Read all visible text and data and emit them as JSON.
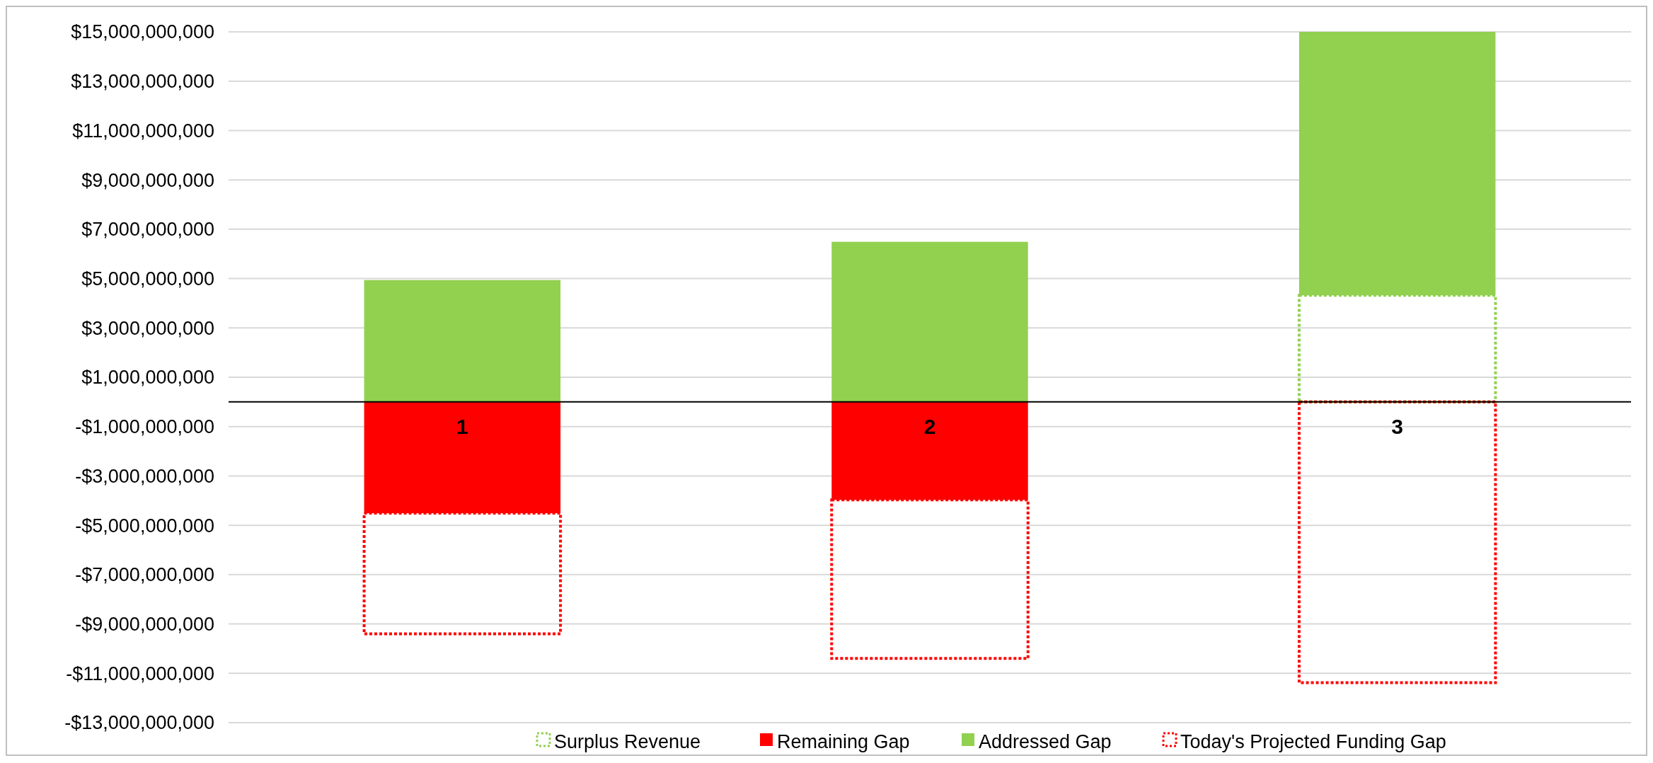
{
  "chart_data": {
    "type": "bar",
    "stacked": true,
    "categories": [
      "1",
      "2",
      "3"
    ],
    "series": [
      {
        "name": "Surplus Revenue",
        "color": "#92d050",
        "line_style": "dotted",
        "values": [
          0,
          0,
          4320000000
        ]
      },
      {
        "name": "Remaining Gap",
        "color": "#ff0000",
        "line_style": "solid",
        "values": [
          -4510000000,
          -3970000000,
          0
        ]
      },
      {
        "name": "Addressed Gap",
        "color": "#92d050",
        "line_style": "solid",
        "values": [
          4940000000,
          6490000000,
          10680000000
        ]
      },
      {
        "name": "Today's Projected Funding Gap",
        "color": "#ff0000",
        "line_style": "dotted",
        "values": [
          -4890000000,
          -6430000000,
          -11380000000
        ]
      }
    ],
    "ylim": [
      -13000000000,
      15000000000
    ],
    "yticks": [
      {
        "value": -13000000000,
        "label": "-$13,000,000,000"
      },
      {
        "value": -11000000000,
        "label": "-$11,000,000,000"
      },
      {
        "value": -9000000000,
        "label": "-$9,000,000,000"
      },
      {
        "value": -7000000000,
        "label": "-$7,000,000,000"
      },
      {
        "value": -5000000000,
        "label": "-$5,000,000,000"
      },
      {
        "value": -3000000000,
        "label": "-$3,000,000,000"
      },
      {
        "value": -1000000000,
        "label": "-$1,000,000,000"
      },
      {
        "value": 1000000000,
        "label": "$1,000,000,000"
      },
      {
        "value": 3000000000,
        "label": "$3,000,000,000"
      },
      {
        "value": 5000000000,
        "label": "$5,000,000,000"
      },
      {
        "value": 7000000000,
        "label": "$7,000,000,000"
      },
      {
        "value": 9000000000,
        "label": "$9,000,000,000"
      },
      {
        "value": 11000000000,
        "label": "$11,000,000,000"
      },
      {
        "value": 13000000000,
        "label": "$13,000,000,000"
      },
      {
        "value": 15000000000,
        "label": "$15,000,000,000"
      }
    ],
    "grid": "y",
    "legend": "bottom"
  }
}
